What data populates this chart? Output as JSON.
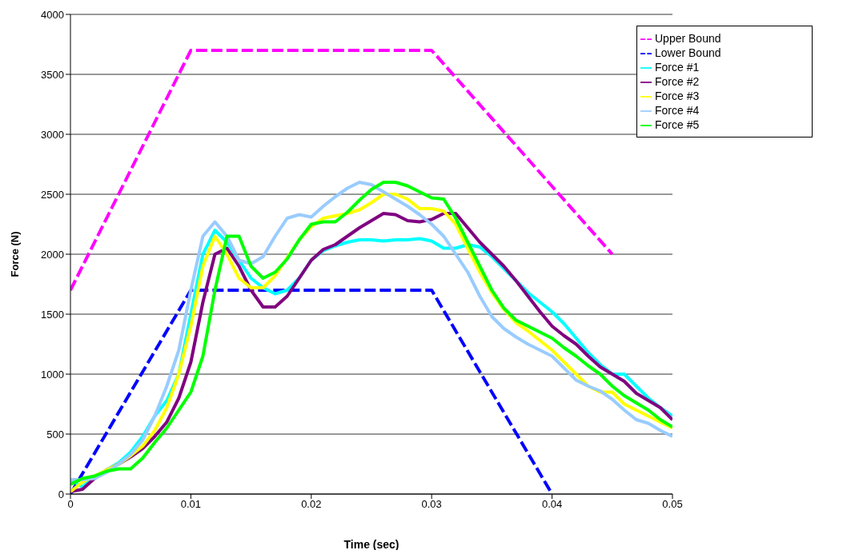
{
  "chart_data": {
    "type": "line",
    "xlabel": "Time (sec)",
    "ylabel": "Force (N)",
    "xlim": [
      0,
      0.05
    ],
    "xticks": [
      0,
      0.01,
      0.02,
      0.03,
      0.04,
      0.05
    ],
    "ylim": [
      0,
      4000
    ],
    "yticks": [
      0,
      500,
      1000,
      1500,
      2000,
      2500,
      3000,
      3500,
      4000
    ],
    "grid": "y",
    "legend": "top right",
    "marker": "none",
    "x": [
      0,
      0.001,
      0.002,
      0.003,
      0.004,
      0.005,
      0.006,
      0.007,
      0.008,
      0.009,
      0.01,
      0.011,
      0.012,
      0.013,
      0.014,
      0.015,
      0.016,
      0.017,
      0.018,
      0.019,
      0.02,
      0.021,
      0.022,
      0.023,
      0.024,
      0.025,
      0.026,
      0.027,
      0.028,
      0.029,
      0.03,
      0.031,
      0.032,
      0.033,
      0.034,
      0.035,
      0.036,
      0.037,
      0.038,
      0.039,
      0.04,
      0.041,
      0.042,
      0.043,
      0.044,
      0.045,
      0.046,
      0.047,
      0.048,
      0.049,
      0.05
    ],
    "series": [
      {
        "name": "Upper Bound",
        "color": "#ff00ff",
        "line_style": "dashed",
        "x": [
          0,
          0.01,
          0.03,
          0.045
        ],
        "values": [
          1700,
          3700,
          3700,
          2000
        ]
      },
      {
        "name": "Lower Bound",
        "color": "#0000ff",
        "line_style": "dashed",
        "x": [
          0,
          0.01,
          0.03,
          0.04
        ],
        "values": [
          0,
          1700,
          1700,
          0
        ]
      },
      {
        "name": "Force #1",
        "color": "#00ffff",
        "line_style": "solid",
        "values": [
          120,
          60,
          150,
          200,
          260,
          350,
          480,
          650,
          780,
          1000,
          1500,
          2000,
          2200,
          2100,
          1950,
          1800,
          1720,
          1670,
          1700,
          1800,
          1950,
          2030,
          2070,
          2100,
          2120,
          2120,
          2110,
          2120,
          2120,
          2130,
          2110,
          2050,
          2050,
          2080,
          2060,
          1980,
          1880,
          1780,
          1680,
          1600,
          1520,
          1420,
          1300,
          1180,
          1080,
          1000,
          1000,
          900,
          800,
          720,
          650
        ]
      },
      {
        "name": "Force #2",
        "color": "#800080",
        "line_style": "solid",
        "values": [
          20,
          40,
          130,
          200,
          250,
          310,
          380,
          480,
          600,
          800,
          1100,
          1600,
          2000,
          2050,
          1900,
          1700,
          1560,
          1560,
          1650,
          1800,
          1950,
          2040,
          2080,
          2150,
          2220,
          2280,
          2340,
          2330,
          2280,
          2270,
          2290,
          2340,
          2340,
          2220,
          2100,
          2000,
          1900,
          1780,
          1650,
          1520,
          1400,
          1320,
          1250,
          1150,
          1060,
          1000,
          940,
          840,
          780,
          720,
          620
        ]
      },
      {
        "name": "Force #3",
        "color": "#ffff00",
        "line_style": "solid",
        "values": [
          20,
          100,
          150,
          200,
          250,
          320,
          400,
          530,
          720,
          1000,
          1400,
          1900,
          2150,
          2000,
          1800,
          1720,
          1720,
          1820,
          1970,
          2120,
          2230,
          2300,
          2320,
          2340,
          2370,
          2430,
          2500,
          2500,
          2460,
          2380,
          2380,
          2360,
          2250,
          2050,
          1850,
          1680,
          1540,
          1430,
          1360,
          1280,
          1200,
          1100,
          1000,
          900,
          850,
          850,
          750,
          700,
          650,
          600,
          550
        ]
      },
      {
        "name": "Force #4",
        "color": "#99ccff",
        "line_style": "solid",
        "values": [
          120,
          120,
          130,
          180,
          250,
          330,
          450,
          650,
          900,
          1200,
          1700,
          2150,
          2270,
          2150,
          1950,
          1920,
          1980,
          2150,
          2300,
          2330,
          2310,
          2400,
          2480,
          2550,
          2600,
          2580,
          2520,
          2460,
          2400,
          2330,
          2250,
          2150,
          2000,
          1850,
          1650,
          1480,
          1380,
          1310,
          1250,
          1200,
          1150,
          1050,
          950,
          900,
          860,
          790,
          700,
          620,
          590,
          530,
          480
        ]
      },
      {
        "name": "Force #5",
        "color": "#00ff00",
        "line_style": "solid",
        "values": [
          80,
          130,
          150,
          190,
          210,
          210,
          300,
          430,
          550,
          700,
          850,
          1150,
          1700,
          2150,
          2150,
          1900,
          1800,
          1850,
          1960,
          2120,
          2250,
          2270,
          2270,
          2350,
          2450,
          2540,
          2600,
          2600,
          2570,
          2520,
          2470,
          2460,
          2300,
          2100,
          1900,
          1700,
          1550,
          1450,
          1400,
          1350,
          1300,
          1220,
          1150,
          1070,
          1000,
          900,
          820,
          760,
          700,
          620,
          560
        ]
      }
    ]
  }
}
